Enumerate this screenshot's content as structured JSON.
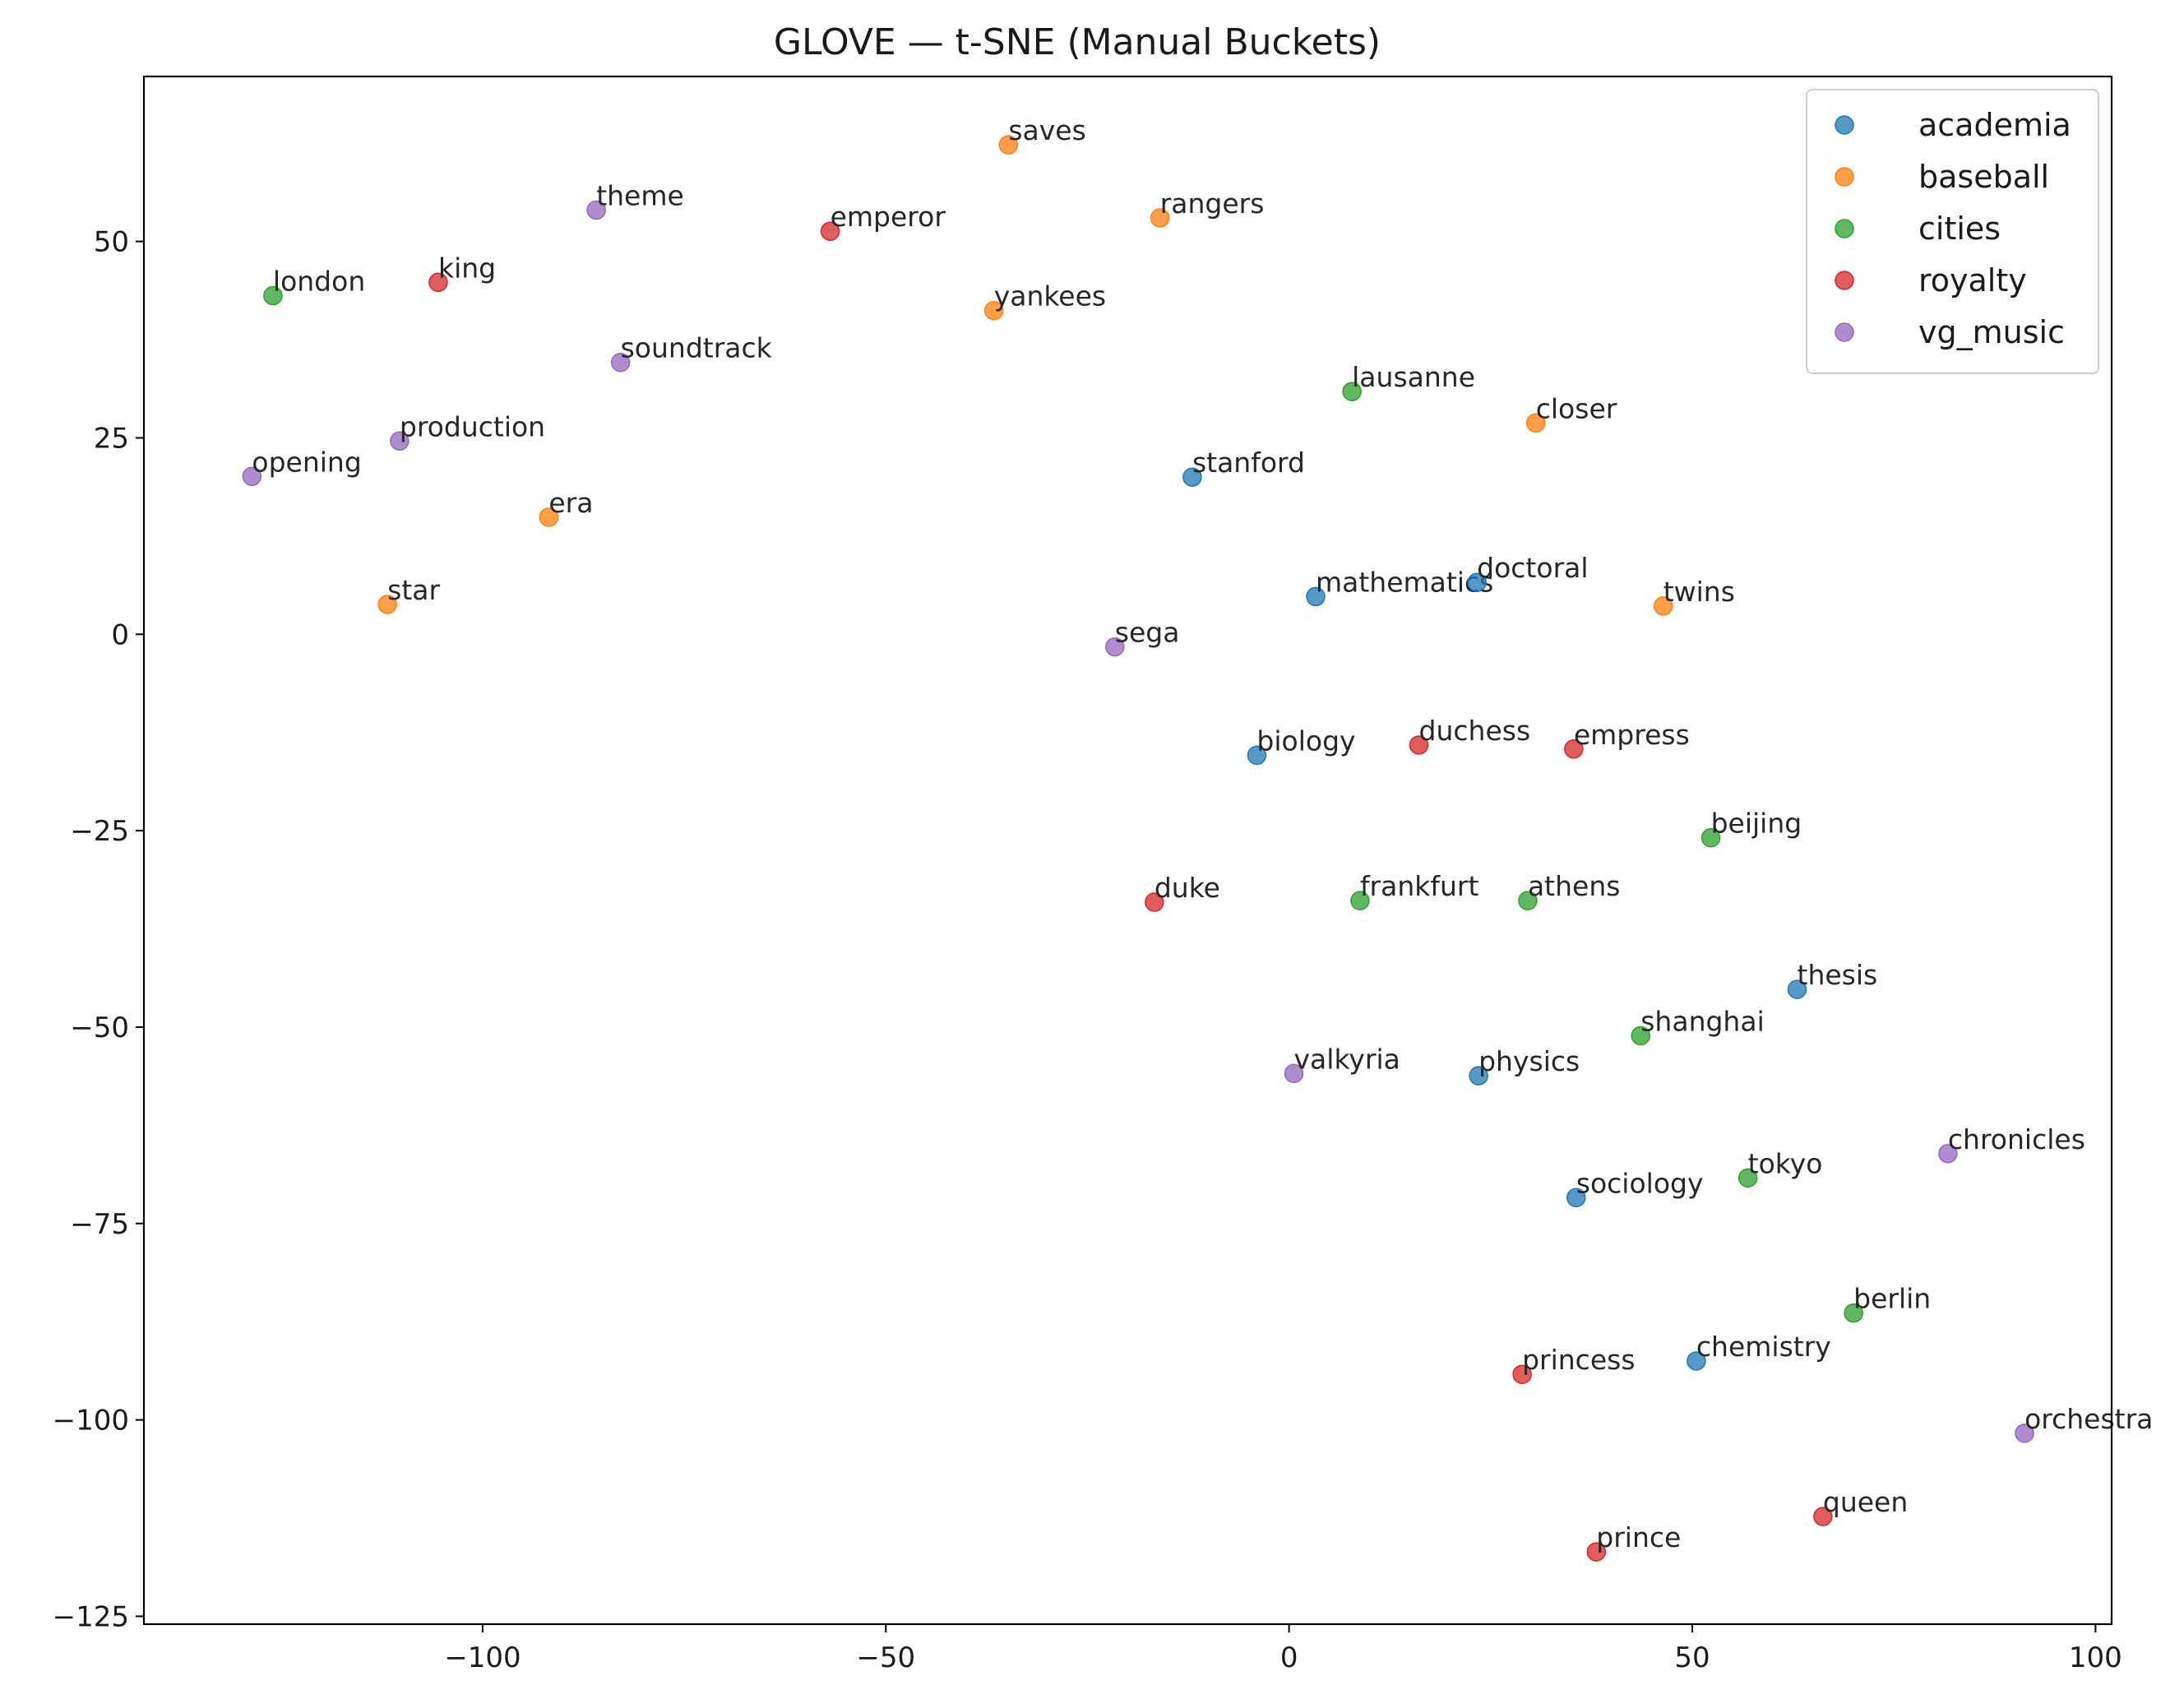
{
  "chart_data": {
    "type": "scatter",
    "title": "GLOVE — t-SNE (Manual Buckets)",
    "xlabel": "",
    "ylabel": "",
    "xlim": [
      -142,
      102
    ],
    "ylim": [
      -126,
      71
    ],
    "xticks": [
      -100,
      -50,
      0,
      50,
      100
    ],
    "yticks": [
      50,
      25,
      0,
      -25,
      -50,
      -75,
      -100,
      -125
    ],
    "xtick_labels": [
      "−100",
      "−50",
      "0",
      "50",
      "100"
    ],
    "ytick_labels": [
      "50",
      "25",
      "0",
      "−25",
      "−50",
      "−75",
      "−100",
      "−125"
    ],
    "grid": false,
    "legend_position": "top-right",
    "series": [
      {
        "name": "academia",
        "color": "#1f77b4",
        "points": [
          {
            "label": "stanford",
            "x": -12.0,
            "y": 20.0
          },
          {
            "label": "mathematics",
            "x": 3.3,
            "y": 4.8
          },
          {
            "label": "doctoral",
            "x": 23.3,
            "y": 6.6
          },
          {
            "label": "biology",
            "x": -4.0,
            "y": -15.4
          },
          {
            "label": "thesis",
            "x": 63.0,
            "y": -45.2
          },
          {
            "label": "physics",
            "x": 23.5,
            "y": -56.2
          },
          {
            "label": "sociology",
            "x": 35.6,
            "y": -71.7
          },
          {
            "label": "chemistry",
            "x": 50.5,
            "y": -92.5
          }
        ]
      },
      {
        "name": "baseball",
        "color": "#ff7f0e",
        "points": [
          {
            "label": "saves",
            "x": -34.8,
            "y": 62.3
          },
          {
            "label": "rangers",
            "x": -16.0,
            "y": 53.0
          },
          {
            "label": "yankees",
            "x": -36.6,
            "y": 41.2
          },
          {
            "label": "closer",
            "x": 30.6,
            "y": 26.9
          },
          {
            "label": "era",
            "x": -91.8,
            "y": 14.9
          },
          {
            "label": "star",
            "x": -111.8,
            "y": 3.8
          },
          {
            "label": "twins",
            "x": 46.4,
            "y": 3.6
          }
        ]
      },
      {
        "name": "cities",
        "color": "#2ca02c",
        "points": [
          {
            "label": "london",
            "x": -126.0,
            "y": 43.1
          },
          {
            "label": "lausanne",
            "x": 7.8,
            "y": 30.9
          },
          {
            "label": "beijing",
            "x": 52.3,
            "y": -25.9
          },
          {
            "label": "frankfurt",
            "x": 8.8,
            "y": -33.9
          },
          {
            "label": "athens",
            "x": 29.6,
            "y": -33.9
          },
          {
            "label": "shanghai",
            "x": 43.6,
            "y": -51.1
          },
          {
            "label": "tokyo",
            "x": 56.9,
            "y": -69.2
          },
          {
            "label": "berlin",
            "x": 70.0,
            "y": -86.4
          }
        ]
      },
      {
        "name": "royalty",
        "color": "#d62728",
        "points": [
          {
            "label": "emperor",
            "x": -56.9,
            "y": 51.3
          },
          {
            "label": "king",
            "x": -105.5,
            "y": 44.8
          },
          {
            "label": "duchess",
            "x": 16.1,
            "y": -14.1
          },
          {
            "label": "empress",
            "x": 35.3,
            "y": -14.6
          },
          {
            "label": "duke",
            "x": -16.7,
            "y": -34.1
          },
          {
            "label": "princess",
            "x": 28.9,
            "y": -94.2
          },
          {
            "label": "queen",
            "x": 66.2,
            "y": -112.3
          },
          {
            "label": "prince",
            "x": 38.1,
            "y": -116.8
          }
        ]
      },
      {
        "name": "vg_music",
        "color": "#9467bd",
        "points": [
          {
            "label": "theme",
            "x": -85.9,
            "y": 54.0
          },
          {
            "label": "soundtrack",
            "x": -82.9,
            "y": 34.6
          },
          {
            "label": "production",
            "x": -110.3,
            "y": 24.6
          },
          {
            "label": "opening",
            "x": -128.6,
            "y": 20.1
          },
          {
            "label": "sega",
            "x": -21.6,
            "y": -1.6
          },
          {
            "label": "valkyria",
            "x": 0.6,
            "y": -55.9
          },
          {
            "label": "chronicles",
            "x": 81.7,
            "y": -66.1
          },
          {
            "label": "orchestra",
            "x": 91.2,
            "y": -101.7
          }
        ]
      }
    ]
  }
}
